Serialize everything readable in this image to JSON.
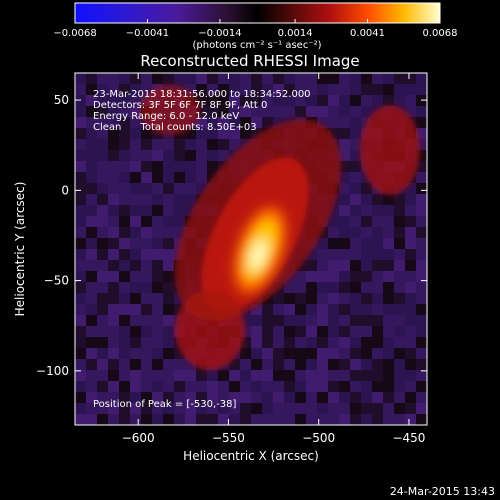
{
  "chart_data": {
    "type": "heatmap",
    "title": "Reconstructed RHESSI Image",
    "xlabel": "Heliocentric X (arcsec)",
    "ylabel": "Heliocentric Y (arcsec)",
    "xlim": [
      -635,
      -440
    ],
    "ylim": [
      -130,
      65
    ],
    "x_ticks": [
      -600,
      -550,
      -500,
      -450
    ],
    "x_tick_labels": [
      "−600",
      "−550",
      "−500",
      "−450"
    ],
    "y_ticks": [
      50,
      0,
      -50,
      -100
    ],
    "y_tick_labels": [
      "50",
      "0",
      "−50",
      "−100"
    ],
    "colorbar": {
      "min": -0.0068,
      "max": 0.0068,
      "ticks": [
        -0.0068,
        -0.0041,
        -0.0014,
        0.0014,
        0.0041,
        0.0068
      ],
      "tick_labels": [
        "−0.0068",
        "−0.0041",
        "−0.0014",
        "0.0014",
        "0.0041",
        "0.0068"
      ],
      "unit_label": "(photons cm⁻² s⁻¹ asec⁻²)"
    },
    "annotations": [
      "23-Mar-2015 18:31:56.000 to 18:34:52.000",
      "Detectors: 3F 5F 6F 7F 8F 9F, Att 0",
      "Energy Range: 6.0 - 12.0 keV",
      "Clean      Total counts: 8.50E+03"
    ],
    "peak_label": "Position of Peak = [-530,-38]",
    "peak": [
      -530,
      -38
    ],
    "footer": "24-Mar-2015 13:43"
  }
}
